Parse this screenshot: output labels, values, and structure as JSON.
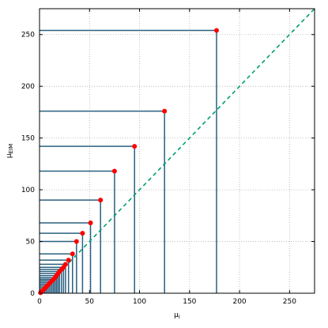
{
  "chart_data": {
    "type": "scatter",
    "xlabel": "μ",
    "xlabel_sub": "i",
    "ylabel": "μ",
    "ylabel_sub": "EIM",
    "xlim": [
      0,
      275
    ],
    "ylim": [
      0,
      275
    ],
    "xticks": [
      0,
      50,
      100,
      150,
      200,
      250
    ],
    "yticks": [
      0,
      50,
      100,
      150,
      200,
      250
    ],
    "grid": true,
    "colors": {
      "points": "#ff0000",
      "drop_lines": "#2a6080",
      "reference_line": "#009e73",
      "grid": "#b0b0b0"
    },
    "reference_line": {
      "style": "dashed",
      "from": [
        0,
        0
      ],
      "to": [
        275,
        275
      ]
    },
    "series": [
      {
        "x": [
          177,
          125,
          95,
          75,
          61,
          51,
          43,
          37,
          33,
          29,
          26,
          24,
          22,
          20,
          18.5,
          17,
          15.5,
          14,
          12.5,
          11,
          9.5,
          8,
          6.5,
          5,
          3.5,
          2,
          1
        ],
        "y": [
          254,
          176,
          142,
          118,
          90,
          68,
          58,
          50,
          38,
          32,
          28,
          25,
          23,
          21,
          19,
          17,
          15,
          13.5,
          12,
          10.5,
          9,
          7.5,
          6,
          4.5,
          3,
          1.5,
          0.5
        ]
      }
    ]
  }
}
